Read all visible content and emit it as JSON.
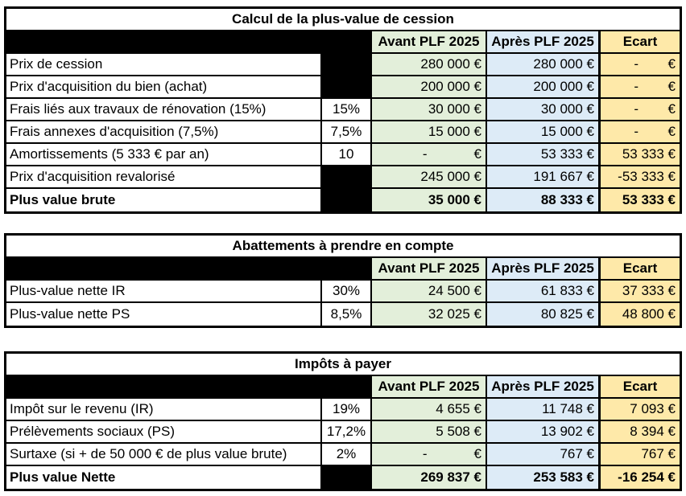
{
  "columns": {
    "avant": "Avant PLF 2025",
    "apres": "Après PLF 2025",
    "ecart": "Ecart"
  },
  "colors": {
    "avant_bg": "#E3EFDA",
    "apres_bg": "#DDEBF7",
    "ecart_bg": "#FEE9A9",
    "band_bg": "#000000",
    "border": "#000000",
    "title_bg": "#FFFFFF"
  },
  "chart_data": [
    {
      "type": "table",
      "title": "Calcul de la plus-value de cession",
      "columns": [
        "",
        "",
        "Avant PLF 2025",
        "Après PLF 2025",
        "Ecart"
      ],
      "rows": [
        {
          "label": "Prix de cession",
          "pct": null,
          "avant": "280 000 €",
          "apres": "280 000 €",
          "ecart": "- €",
          "bold": false
        },
        {
          "label": "Prix d'acquisition du bien (achat)",
          "pct": null,
          "avant": "200 000 €",
          "apres": "200 000 €",
          "ecart": "- €",
          "bold": false
        },
        {
          "label": "Frais liés aux travaux de rénovation (15%)",
          "pct": "15%",
          "avant": "30 000 €",
          "apres": "30 000 €",
          "ecart": "- €",
          "bold": false
        },
        {
          "label": "Frais annexes d'acquisition (7,5%)",
          "pct": "7,5%",
          "avant": "15 000 €",
          "apres": "15 000 €",
          "ecart": "- €",
          "bold": false
        },
        {
          "label": "Amortissements (5 333 € par an)",
          "pct": "10",
          "avant": "- €",
          "apres": "53 333 €",
          "ecart": "53 333 €",
          "bold": false
        },
        {
          "label": "Prix d'acquisition revalorisé",
          "pct": null,
          "avant": "245 000 €",
          "apres": "191 667 €",
          "ecart": "-53 333 €",
          "bold": false
        },
        {
          "label": "Plus value brute",
          "pct": null,
          "avant": "35 000 €",
          "apres": "88 333 €",
          "ecart": "53 333 €",
          "bold": true
        }
      ]
    },
    {
      "type": "table",
      "title": "Abattements à prendre en compte",
      "columns": [
        "",
        "",
        "Avant PLF 2025",
        "Après PLF 2025",
        "Ecart"
      ],
      "rows": [
        {
          "label": "Plus-value nette IR",
          "pct": "30%",
          "avant": "24 500 €",
          "apres": "61 833 €",
          "ecart": "37 333 €",
          "bold": false
        },
        {
          "label": "Plus-value nette PS",
          "pct": "8,5%",
          "avant": "32 025 €",
          "apres": "80 825 €",
          "ecart": "48 800 €",
          "bold": false
        }
      ]
    },
    {
      "type": "table",
      "title": "Impôts à payer",
      "columns": [
        "",
        "",
        "Avant PLF 2025",
        "Après PLF 2025",
        "Ecart"
      ],
      "rows": [
        {
          "label": "Impôt sur le revenu (IR)",
          "pct": "19%",
          "avant": "4 655 €",
          "apres": "11 748 €",
          "ecart": "7 093 €",
          "bold": false
        },
        {
          "label": "Prélèvements sociaux (PS)",
          "pct": "17,2%",
          "avant": "5 508 €",
          "apres": "13 902 €",
          "ecart": "8 394 €",
          "bold": false
        },
        {
          "label": "Surtaxe (si + de 50 000 € de plus value brute)",
          "pct": "2%",
          "avant": "- €",
          "apres": "767 €",
          "ecart": "767 €",
          "bold": false
        },
        {
          "label": "Plus value Nette",
          "pct": null,
          "avant": "269 837 €",
          "apres": "253 583 €",
          "ecart": "-16 254 €",
          "bold": true
        }
      ]
    }
  ]
}
